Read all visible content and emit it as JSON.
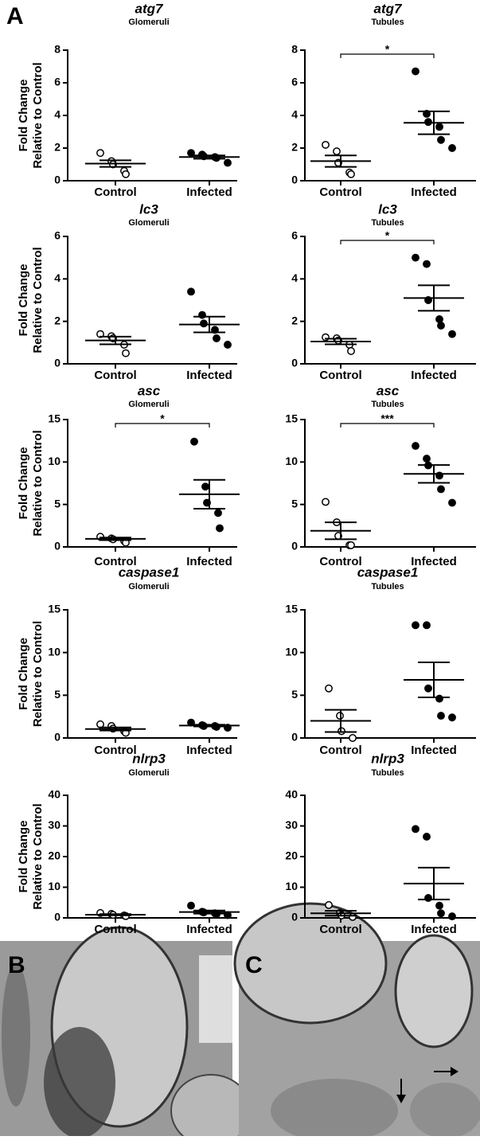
{
  "panel_labels": [
    "A",
    "B",
    "C"
  ],
  "chart_data": [
    {
      "type": "dot",
      "title": "atg7",
      "subtitle": "Glomeruli",
      "ylabel": [
        "Fold Change",
        "Relative to Control"
      ],
      "categories": [
        "Control",
        "Infected"
      ],
      "ylim": [
        0,
        8
      ],
      "yticks": [
        0,
        2,
        4,
        6,
        8
      ],
      "groups": [
        {
          "marker": "open",
          "values": [
            1.7,
            1.2,
            1.0,
            0.6,
            0.4
          ],
          "mean": 1.05,
          "sem": 0.2
        },
        {
          "marker": "filled",
          "values": [
            1.7,
            1.6,
            1.5,
            1.45,
            1.4,
            1.1
          ],
          "mean": 1.45,
          "sem": 0.1
        }
      ]
    },
    {
      "type": "dot",
      "title": "atg7",
      "subtitle": "Tubules",
      "significance": "*",
      "categories": [
        "Control",
        "Infected"
      ],
      "ylim": [
        0,
        8
      ],
      "yticks": [
        0,
        2,
        4,
        6,
        8
      ],
      "groups": [
        {
          "marker": "open",
          "values": [
            2.2,
            1.8,
            1.1,
            0.5,
            0.4
          ],
          "mean": 1.2,
          "sem": 0.35
        },
        {
          "marker": "filled",
          "values": [
            6.7,
            4.1,
            3.6,
            3.3,
            2.5,
            2.0
          ],
          "mean": 3.55,
          "sem": 0.7
        }
      ]
    },
    {
      "type": "dot",
      "title": "lc3",
      "subtitle": "Glomeruli",
      "ylabel": [
        "Fold Change",
        "Relative to Control"
      ],
      "categories": [
        "Control",
        "Infected"
      ],
      "ylim": [
        0,
        6
      ],
      "yticks": [
        0,
        2,
        4,
        6
      ],
      "groups": [
        {
          "marker": "open",
          "values": [
            1.4,
            1.3,
            1.2,
            0.9,
            0.5
          ],
          "mean": 1.1,
          "sem": 0.18
        },
        {
          "marker": "filled",
          "values": [
            3.4,
            2.3,
            1.9,
            1.6,
            1.2,
            0.9
          ],
          "mean": 1.85,
          "sem": 0.37
        }
      ]
    },
    {
      "type": "dot",
      "title": "lc3",
      "subtitle": "Tubules",
      "significance": "*",
      "categories": [
        "Control",
        "Infected"
      ],
      "ylim": [
        0,
        6
      ],
      "yticks": [
        0,
        2,
        4,
        6
      ],
      "groups": [
        {
          "marker": "open",
          "values": [
            1.25,
            1.2,
            1.1,
            0.9,
            0.6
          ],
          "mean": 1.05,
          "sem": 0.13
        },
        {
          "marker": "filled",
          "values": [
            5.0,
            4.7,
            3.0,
            2.1,
            1.8,
            1.4
          ],
          "mean": 3.1,
          "sem": 0.6
        }
      ]
    },
    {
      "type": "dot",
      "title": "asc",
      "subtitle": "Glomeruli",
      "significance": "*",
      "ylabel": [
        "Fold Change",
        "Relative to Control"
      ],
      "categories": [
        "Control",
        "Infected"
      ],
      "ylim": [
        0,
        15
      ],
      "yticks": [
        0,
        5,
        10,
        15
      ],
      "groups": [
        {
          "marker": "open",
          "values": [
            1.2,
            1.0,
            0.9,
            0.7,
            0.5
          ],
          "mean": 0.95,
          "sem": 0.15
        },
        {
          "marker": "filled",
          "values": [
            12.4,
            7.1,
            5.2,
            4.0,
            2.2
          ],
          "mean": 6.2,
          "sem": 1.7
        }
      ]
    },
    {
      "type": "dot",
      "title": "asc",
      "subtitle": "Tubules",
      "significance": "***",
      "categories": [
        "Control",
        "Infected"
      ],
      "ylim": [
        0,
        15
      ],
      "yticks": [
        0,
        5,
        10,
        15
      ],
      "groups": [
        {
          "marker": "open",
          "values": [
            5.3,
            2.9,
            1.3,
            0.2,
            0.2
          ],
          "mean": 1.9,
          "sem": 1.0
        },
        {
          "marker": "filled",
          "values": [
            11.9,
            10.4,
            9.6,
            8.4,
            6.8,
            5.2
          ],
          "mean": 8.6,
          "sem": 1.05
        }
      ]
    },
    {
      "type": "dot",
      "title": "caspase1",
      "subtitle": "Glomeruli",
      "ylabel": [
        "Fold Change",
        "Relative to Control"
      ],
      "categories": [
        "Control",
        "Infected"
      ],
      "ylim": [
        0,
        15
      ],
      "yticks": [
        0,
        5,
        10,
        15
      ],
      "groups": [
        {
          "marker": "open",
          "values": [
            1.6,
            1.4,
            1.1,
            0.8,
            0.6
          ],
          "mean": 1.05,
          "sem": 0.18
        },
        {
          "marker": "filled",
          "values": [
            1.8,
            1.5,
            1.4,
            1.4,
            1.3,
            1.2
          ],
          "mean": 1.45,
          "sem": 0.1
        }
      ]
    },
    {
      "type": "dot",
      "title": "caspase1",
      "subtitle": "Tubules",
      "categories": [
        "Control",
        "Infected"
      ],
      "ylim": [
        0,
        15
      ],
      "yticks": [
        0,
        5,
        10,
        15
      ],
      "groups": [
        {
          "marker": "open",
          "values": [
            5.8,
            2.6,
            0.8,
            0.0
          ],
          "mean": 2.0,
          "sem": 1.3
        },
        {
          "marker": "filled",
          "values": [
            13.2,
            13.2,
            5.8,
            4.6,
            2.6,
            2.4
          ],
          "mean": 6.8,
          "sem": 2.05
        }
      ]
    },
    {
      "type": "dot",
      "title": "nlrp3",
      "subtitle": "Glomeruli",
      "ylabel": [
        "Fold Change",
        "Relative to Control"
      ],
      "categories": [
        "Control",
        "Infected"
      ],
      "ylim": [
        0,
        40
      ],
      "yticks": [
        0,
        10,
        20,
        30,
        40
      ],
      "groups": [
        {
          "marker": "open",
          "values": [
            1.6,
            1.3,
            1.0,
            0.8,
            0.6
          ],
          "mean": 1.05,
          "sem": 0.2
        },
        {
          "marker": "filled",
          "values": [
            4.0,
            2.0,
            1.8,
            1.5,
            1.2,
            0.9
          ],
          "mean": 1.9,
          "sem": 0.5
        }
      ]
    },
    {
      "type": "dot",
      "title": "nlrp3",
      "subtitle": "Tubules",
      "categories": [
        "Control",
        "Infected"
      ],
      "ylim": [
        0,
        40
      ],
      "yticks": [
        0,
        10,
        20,
        30,
        40
      ],
      "groups": [
        {
          "marker": "open",
          "values": [
            4.2,
            1.6,
            0.8,
            0.3
          ],
          "mean": 1.5,
          "sem": 0.8
        },
        {
          "marker": "filled",
          "values": [
            29.0,
            26.5,
            6.5,
            4.0,
            1.5,
            0.5
          ],
          "mean": 11.2,
          "sem": 5.2
        }
      ]
    }
  ]
}
